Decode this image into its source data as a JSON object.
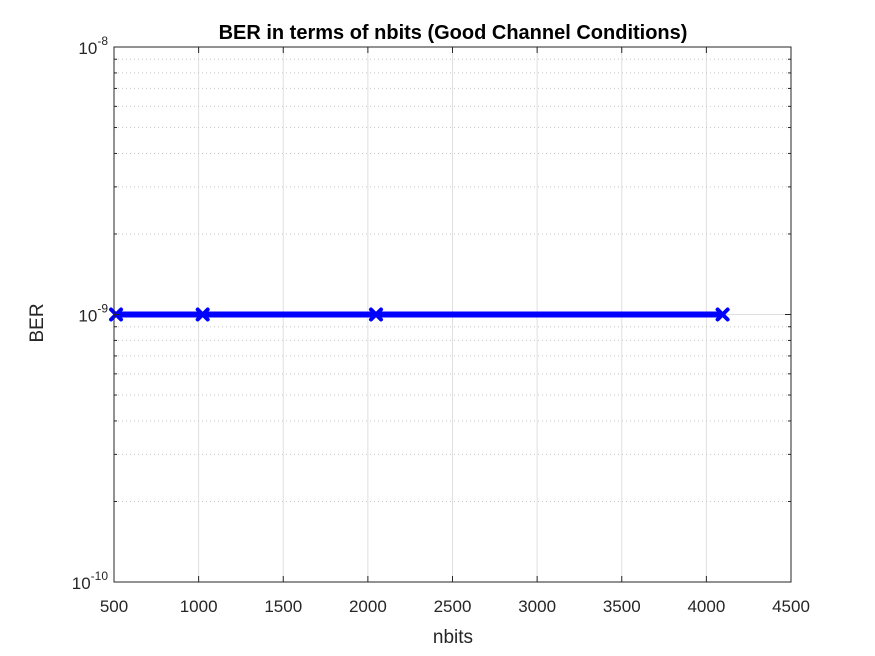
{
  "chart_data": {
    "type": "line",
    "title": "BER in terms of nbits (Good Channel Conditions)",
    "xlabel": "nbits",
    "ylabel": "BER",
    "xlim": [
      500,
      4500
    ],
    "ylim": [
      1e-10,
      1e-08
    ],
    "yscale": "log",
    "xticks": [
      500,
      1000,
      1500,
      2000,
      2500,
      3000,
      3500,
      4000,
      4500
    ],
    "yticks": [
      {
        "value": 1e-10,
        "base": "10",
        "exp": "-10"
      },
      {
        "value": 1e-09,
        "base": "10",
        "exp": "-9"
      },
      {
        "value": 1e-08,
        "base": "10",
        "exp": "-8"
      }
    ],
    "grid": true,
    "minor_grid": true,
    "series": [
      {
        "color": "#0000ff",
        "marker": "x",
        "x": [
          512,
          1024,
          2048,
          4096
        ],
        "y": [
          1e-09,
          1e-09,
          1e-09,
          1e-09
        ]
      }
    ]
  }
}
